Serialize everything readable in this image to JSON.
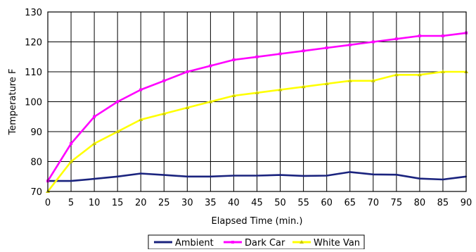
{
  "chart_data": {
    "type": "line",
    "title": "",
    "xlabel": "Elapsed Time (min.)",
    "ylabel": "Temperature F",
    "xlim": [
      0,
      90
    ],
    "ylim": [
      70,
      130
    ],
    "x_ticks": [
      "0",
      "5",
      "10",
      "15",
      "20",
      "25",
      "30",
      "35",
      "40",
      "45",
      "50",
      "55",
      "60",
      "65",
      "70",
      "75",
      "80",
      "85",
      "90"
    ],
    "y_ticks": [
      "70",
      "80",
      "90",
      "100",
      "110",
      "120",
      "130"
    ],
    "grid": true,
    "legend_position": "bottom",
    "x": [
      0,
      5,
      10,
      15,
      20,
      25,
      30,
      35,
      40,
      45,
      50,
      55,
      60,
      65,
      70,
      75,
      80,
      85,
      90
    ],
    "series": [
      {
        "name": "Ambient",
        "color": "#1a237e",
        "marker": "none",
        "values": [
          73.5,
          73.5,
          74.2,
          75,
          76,
          75.5,
          75,
          75,
          75.3,
          75.3,
          75.5,
          75.2,
          75.3,
          76.5,
          75.7,
          75.6,
          74.3,
          74,
          75
        ]
      },
      {
        "name": "Dark Car",
        "color": "#ff00ff",
        "marker": "square",
        "values": [
          73.5,
          86,
          95,
          100,
          104,
          107,
          110,
          112,
          114,
          115,
          116,
          117,
          118,
          119,
          120,
          121,
          122,
          122,
          123
        ]
      },
      {
        "name": "White Van",
        "color": "#ffff00",
        "marker": "triangle",
        "values": [
          70,
          80,
          86,
          90,
          94,
          96,
          98,
          100,
          102,
          103,
          104,
          105,
          106,
          107,
          107,
          109,
          109,
          110,
          110
        ]
      }
    ]
  }
}
